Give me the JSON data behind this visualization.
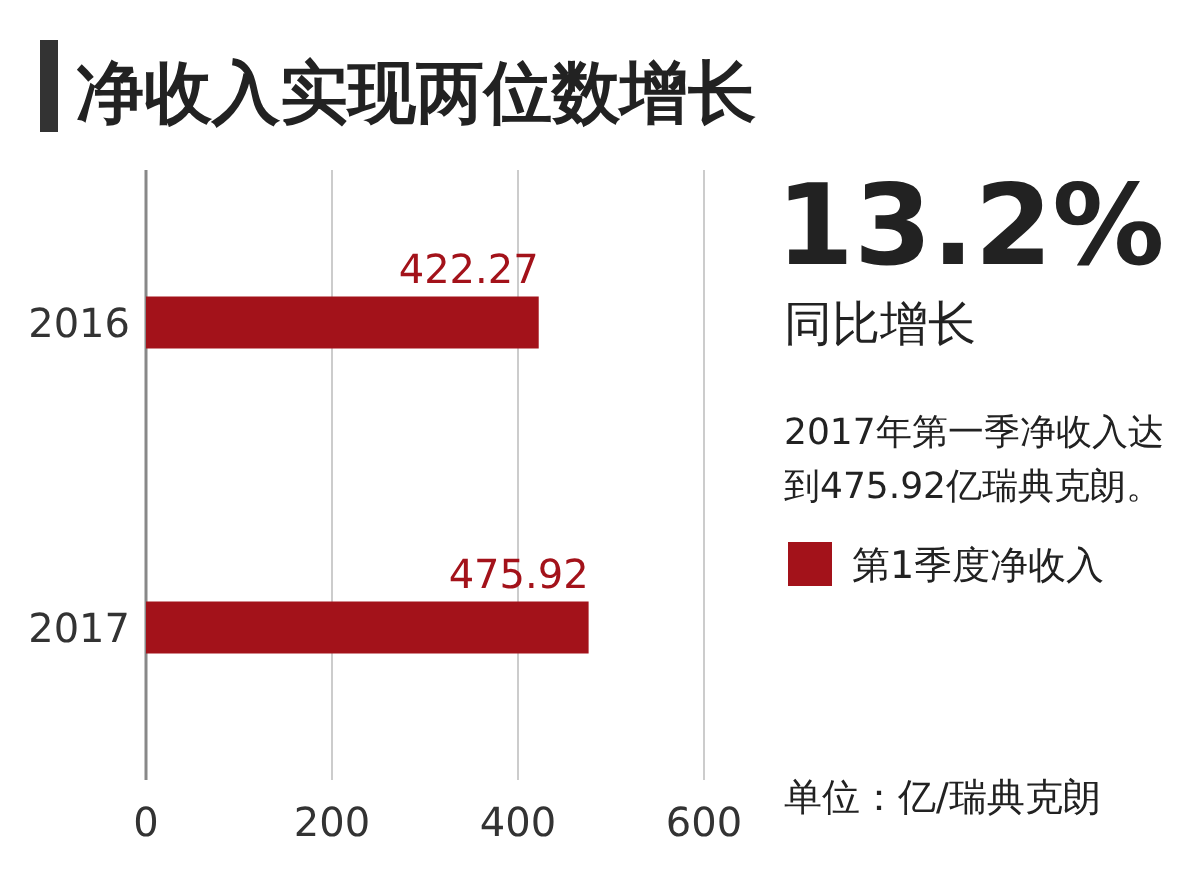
{
  "chart_data": {
    "type": "bar",
    "orientation": "horizontal",
    "title": "净收入实现两位数增长",
    "categories": [
      "2016",
      "2017"
    ],
    "series": [
      {
        "name": "第1季度净收入",
        "color": "#a3121a",
        "values": [
          422.27,
          475.92
        ]
      }
    ],
    "data_labels": true,
    "xlim": [
      0,
      600
    ],
    "xticks": [
      0,
      200,
      400,
      600
    ],
    "grid": "x",
    "legend": "right",
    "annotations": [
      "13.2%",
      "同比增长",
      "2017年第一季净收入达到475.92亿瑞典克朗。",
      "单位：亿/瑞典克朗"
    ]
  }
}
